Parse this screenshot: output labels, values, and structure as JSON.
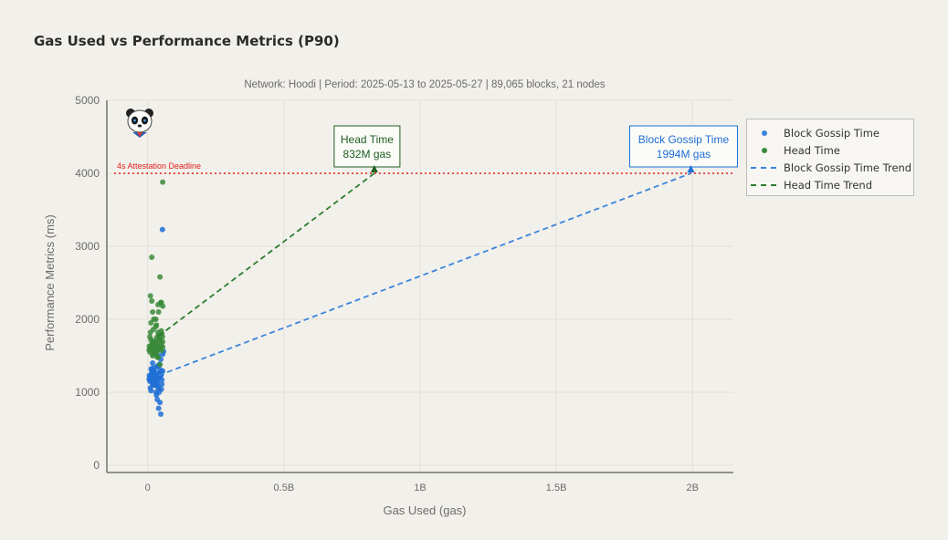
{
  "chart_data": {
    "type": "scatter",
    "title": "Gas Used vs Performance Metrics (P90)",
    "subtitle": "Network: Hoodi | Period: 2025-05-13 to 2025-05-27 | 89,065 blocks, 21 nodes",
    "xlabel": "Gas Used (gas)",
    "ylabel": "Performance Metrics (ms)",
    "xlim": [
      -150000000,
      2150000000
    ],
    "ylim": [
      -100,
      5000
    ],
    "x_ticks": [
      {
        "value": 0,
        "label": "0"
      },
      {
        "value": 500000000,
        "label": "0.5B"
      },
      {
        "value": 1000000000,
        "label": "1B"
      },
      {
        "value": 1500000000,
        "label": "1.5B"
      },
      {
        "value": 2000000000,
        "label": "2B"
      }
    ],
    "y_ticks": [
      {
        "value": 0,
        "label": "0"
      },
      {
        "value": 1000,
        "label": "1000"
      },
      {
        "value": 2000,
        "label": "2000"
      },
      {
        "value": 3000,
        "label": "3000"
      },
      {
        "value": 4000,
        "label": "4000"
      },
      {
        "value": 5000,
        "label": "5000"
      }
    ],
    "grid": true,
    "legend_position": "right",
    "reference_line": {
      "y": 4000,
      "label": "4s Attestation Deadline",
      "color": "#e02020"
    },
    "series": [
      {
        "name": "Block Gossip Time",
        "kind": "scatter",
        "color": "#1f6fd6",
        "x": [
          5000000,
          10000000,
          15000000,
          20000000,
          25000000,
          30000000,
          35000000,
          40000000,
          45000000,
          50000000,
          55000000,
          8000000,
          12000000,
          18000000,
          22000000,
          28000000,
          33000000,
          38000000,
          42000000,
          48000000,
          52000000,
          6000000,
          14000000,
          24000000,
          34000000,
          44000000,
          16000000,
          26000000,
          36000000,
          46000000,
          10000000,
          20000000,
          30000000,
          40000000,
          50000000,
          12000000,
          32000000,
          42000000,
          52000000,
          18000000,
          38000000,
          48000000,
          55000000,
          54000000,
          58000000,
          35000000,
          45000000,
          48000000,
          40000000,
          20000000,
          38000000,
          50000000,
          47000000,
          15000000,
          25000000,
          35000000,
          10000000,
          30000000
        ],
        "y": [
          1180,
          1210,
          1250,
          1190,
          1230,
          1270,
          1160,
          1220,
          1200,
          1240,
          1290,
          1150,
          1320,
          1100,
          1300,
          1140,
          1350,
          1080,
          1380,
          1260,
          1170,
          1230,
          1210,
          1180,
          1240,
          1200,
          1280,
          1150,
          1190,
          1310,
          1060,
          1120,
          1090,
          1050,
          1040,
          1020,
          960,
          1000,
          1110,
          1400,
          1500,
          1450,
          1520,
          3230,
          1560,
          900,
          860,
          700,
          780,
          1330,
          1360,
          1250,
          1270,
          1290,
          1100,
          1130,
          1170,
          1000
        ]
      },
      {
        "name": "Head Time",
        "kind": "scatter",
        "color": "#3a8a3a",
        "x": [
          5000000,
          10000000,
          15000000,
          20000000,
          25000000,
          30000000,
          35000000,
          40000000,
          45000000,
          50000000,
          55000000,
          8000000,
          12000000,
          18000000,
          22000000,
          28000000,
          33000000,
          38000000,
          42000000,
          48000000,
          52000000,
          6000000,
          14000000,
          24000000,
          34000000,
          44000000,
          16000000,
          26000000,
          36000000,
          46000000,
          10000000,
          20000000,
          30000000,
          40000000,
          50000000,
          12000000,
          22000000,
          32000000,
          42000000,
          52000000,
          18000000,
          38000000,
          48000000,
          55000000,
          55000000,
          15000000,
          45000000,
          50000000,
          54000000,
          10000000,
          15000000,
          30000000,
          40000000,
          8000000,
          28000000,
          38000000,
          55000000,
          20000000,
          35000000,
          45000000,
          12000000,
          42000000
        ],
        "y": [
          1580,
          1610,
          1650,
          1590,
          1630,
          1670,
          1560,
          1620,
          1600,
          1640,
          1690,
          1550,
          1720,
          1500,
          1700,
          1540,
          1750,
          1480,
          1780,
          1660,
          1570,
          1630,
          1610,
          1580,
          1640,
          1600,
          1680,
          1550,
          1590,
          1710,
          1820,
          1860,
          1900,
          1780,
          1840,
          1950,
          2000,
          1920,
          1740,
          1800,
          2100,
          2200,
          2230,
          2180,
          3880,
          2850,
          2580,
          2230,
          1760,
          2320,
          2250,
          2000,
          2100,
          1760,
          1680,
          1820,
          1620,
          1520,
          1480,
          1380,
          1580,
          1720
        ]
      },
      {
        "name": "Block Gossip Time Trend",
        "kind": "line",
        "dash": true,
        "color": "#3a84dd",
        "x": [
          40000000,
          1994000000
        ],
        "y": [
          1230,
          4000
        ]
      },
      {
        "name": "Head Time Trend",
        "kind": "line",
        "dash": true,
        "color": "#2e7d2e",
        "x": [
          40000000,
          832000000
        ],
        "y": [
          1770,
          4000
        ]
      }
    ],
    "annotations": [
      {
        "text_lines": [
          "Head Time",
          "832M gas"
        ],
        "x": 832000000,
        "y": 4000,
        "color": "#1f5e1f"
      },
      {
        "text_lines": [
          "Block Gossip Time",
          "1994M gas"
        ],
        "x": 1994000000,
        "y": 4000,
        "color": "#1f6fd6"
      }
    ]
  },
  "mascot": {
    "icon": "panda-icon"
  }
}
